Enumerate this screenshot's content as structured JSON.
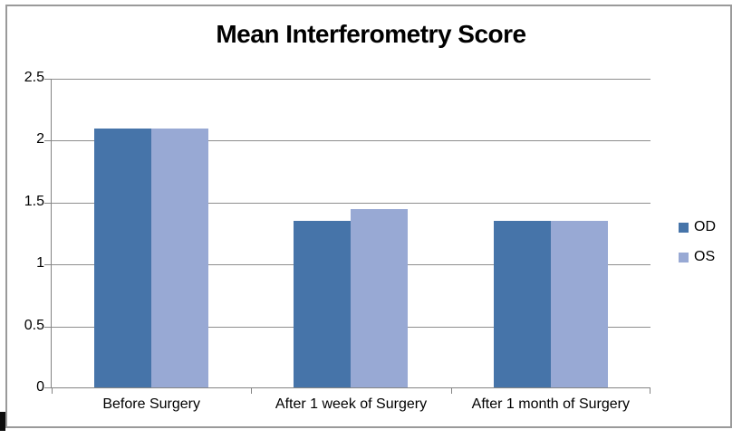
{
  "chart_data": {
    "type": "bar",
    "title": "Mean Interferometry Score",
    "categories": [
      "Before Surgery",
      "After 1 week of Surgery",
      "After 1 month of Surgery"
    ],
    "series": [
      {
        "name": "OD",
        "color": "#4674a9",
        "values": [
          2.1,
          1.35,
          1.35
        ]
      },
      {
        "name": "OS",
        "color": "#98a9d4",
        "values": [
          2.1,
          1.45,
          1.35
        ]
      }
    ],
    "xlabel": "",
    "ylabel": "",
    "ylim": [
      0,
      2.5
    ],
    "yticks": [
      0,
      0.5,
      1,
      1.5,
      2,
      2.5
    ],
    "ytick_labels": [
      "0",
      "0.5",
      "1",
      "1.5",
      "2",
      "2.5"
    ],
    "grid": "horizontal",
    "legend_position": "right",
    "legend_entries": [
      "OD",
      "OS"
    ]
  },
  "colors": {
    "bar_od": "#4674a9",
    "bar_os": "#98a9d4",
    "gridline": "#8e8e8e",
    "axis": "#848484",
    "frame_border": "#9a9a9a",
    "title_text": "#000000",
    "background": "#ffffff"
  }
}
